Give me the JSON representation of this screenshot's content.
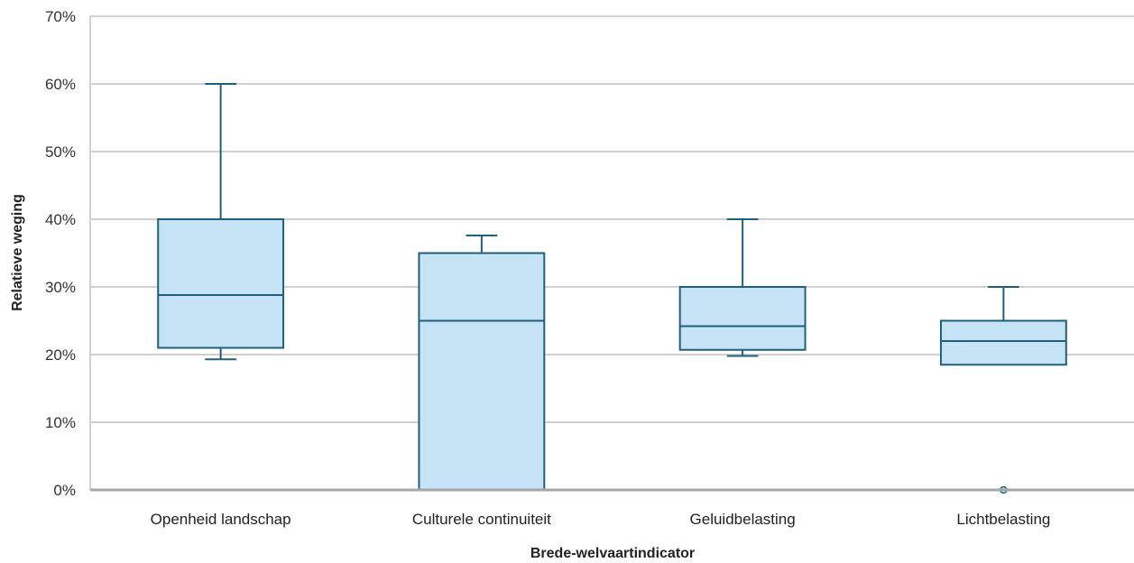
{
  "chart_data": {
    "type": "box",
    "title": "",
    "xlabel": "Brede-welvaartindicator",
    "ylabel": "Relatieve weging",
    "ylim": [
      0,
      70
    ],
    "yticks": [
      0,
      10,
      20,
      30,
      40,
      50,
      60,
      70
    ],
    "ytick_labels": [
      "0%",
      "10%",
      "20%",
      "30%",
      "40%",
      "50%",
      "60%",
      "70%"
    ],
    "grid": true,
    "colors": {
      "box_fill": "#c5e3f4",
      "box_stroke": "#1f5f7e",
      "grid": "#d0d0d0",
      "axis": "#a6a6a6"
    },
    "categories": [
      "Openheid landschap",
      "Culturele continuiteit",
      "Geluidbelasting",
      "Lichtbelasting"
    ],
    "boxes": [
      {
        "min": 19.3,
        "q1": 21.0,
        "median": 28.8,
        "q3": 40.0,
        "max": 60.0,
        "outliers": []
      },
      {
        "min": 0.0,
        "q1": 0.0,
        "median": 25.0,
        "q3": 35.0,
        "max": 37.6,
        "outliers": []
      },
      {
        "min": 19.8,
        "q1": 20.7,
        "median": 24.2,
        "q3": 30.0,
        "max": 40.0,
        "outliers": []
      },
      {
        "min": 18.5,
        "q1": 18.5,
        "median": 22.0,
        "q3": 25.0,
        "max": 30.0,
        "outliers": [
          0
        ]
      }
    ]
  }
}
